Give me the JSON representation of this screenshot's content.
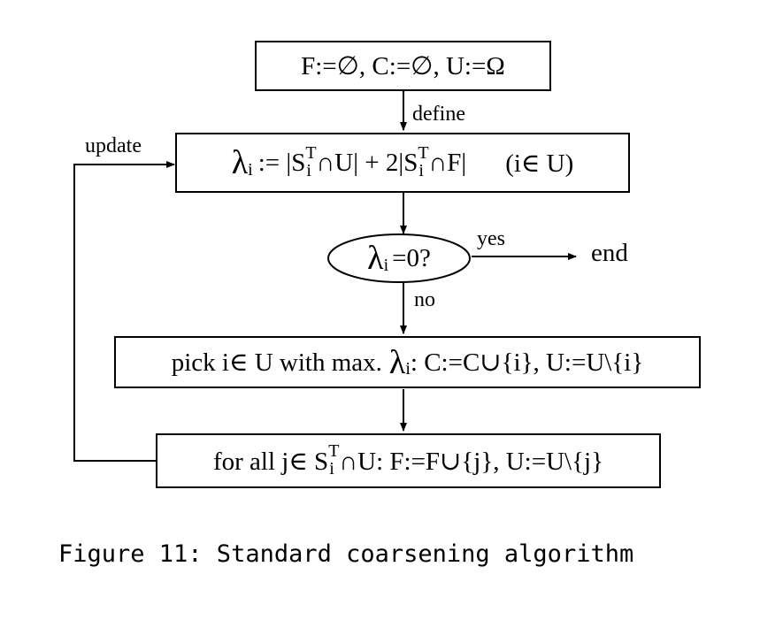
{
  "boxes": {
    "init": "F:=∅, C:=∅, U:=Ω",
    "define_lambda": {
      "lambda": "λ",
      "sub": "i",
      "part1": ":= |S",
      "sup_T": "T",
      "part2": "∩U| + 2|S",
      "part3": "∩F|",
      "range": "(i∈ U)"
    },
    "test": {
      "lambda": "λ",
      "sub": "i",
      "rest": "=0?"
    },
    "pick": {
      "pre": "pick i∈ U with max.",
      "lambda": "λ",
      "sub": "i",
      "post": ":  C:=C∪{i}, U:=U\\{i}"
    },
    "forall": {
      "pre": "for all j∈ S",
      "sup_T": "T",
      "sub": "i",
      "post": "∩U:  F:=F∪{j}, U:=U\\{j}"
    }
  },
  "edge_labels": {
    "define": "define",
    "update": "update",
    "yes": "yes",
    "no": "no",
    "end": "end"
  },
  "caption": "Figure 11: Standard coarsening algorithm"
}
